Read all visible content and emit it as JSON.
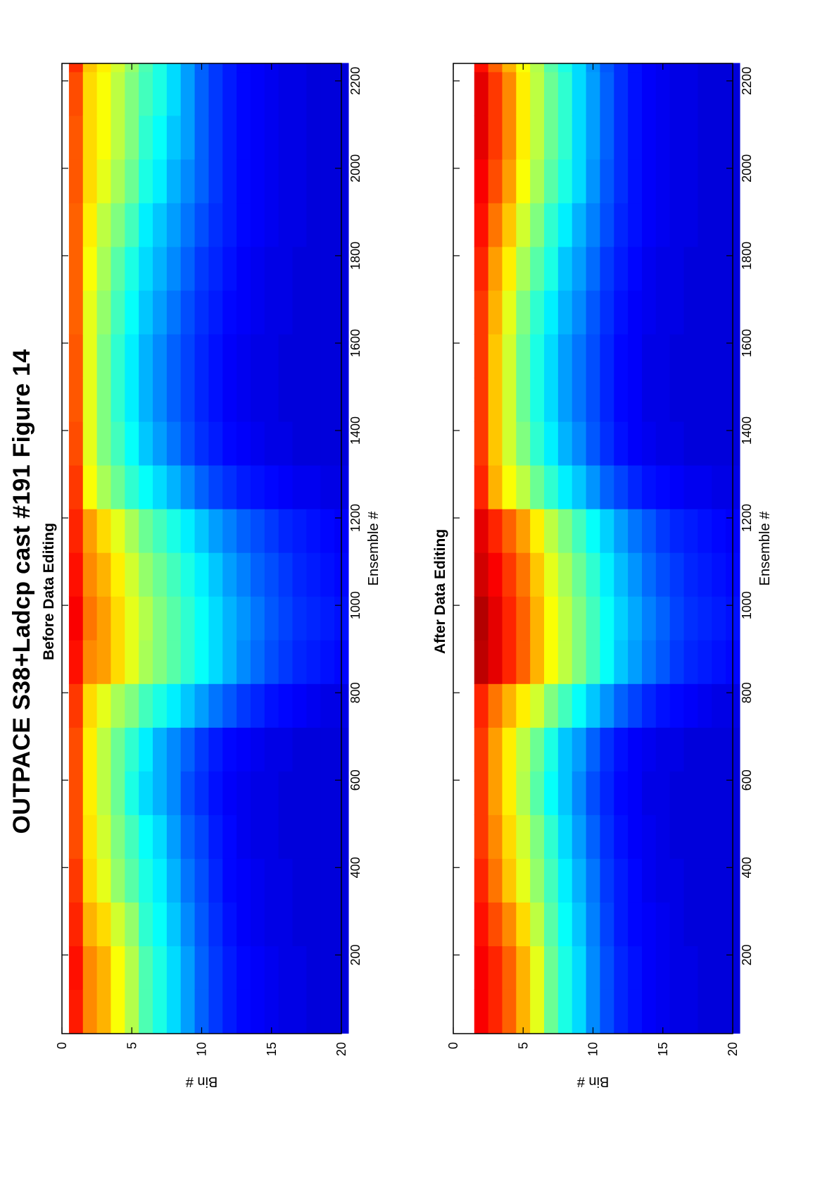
{
  "figure": {
    "title": "OUTPACE S38+Ladcp cast #191  Figure 14"
  },
  "chart_data": [
    {
      "type": "heatmap",
      "title": "Before Data Editing",
      "xlabel": "Ensemble #",
      "ylabel": "Bin #",
      "xlim": [
        20,
        2240
      ],
      "ylim": [
        0,
        20
      ],
      "y_reversed": true,
      "xticks": [
        200,
        400,
        600,
        800,
        1000,
        1200,
        1400,
        1600,
        1800,
        2000,
        2200
      ],
      "yticks": [
        0,
        5,
        10,
        15,
        20
      ],
      "bins": [
        1,
        2,
        3,
        4,
        5,
        6,
        7,
        8,
        9,
        10,
        11,
        12,
        13,
        14,
        15,
        16,
        17,
        18,
        19,
        20
      ],
      "ensembles": [
        20,
        120,
        220,
        320,
        420,
        520,
        620,
        720,
        820,
        920,
        1020,
        1120,
        1220,
        1320,
        1420,
        1520,
        1620,
        1720,
        1820,
        1920,
        2020,
        2120,
        2220
      ],
      "values": [
        [
          0.85,
          0.86,
          0.84,
          0.82,
          0.8,
          0.8,
          0.8,
          0.82,
          0.86,
          0.88,
          0.86,
          0.84,
          0.82,
          0.8,
          0.79,
          0.79,
          0.78,
          0.78,
          0.78,
          0.79,
          0.79,
          0.8,
          0.83
        ],
        [
          0.74,
          0.74,
          0.7,
          0.66,
          0.65,
          0.64,
          0.64,
          0.66,
          0.74,
          0.76,
          0.74,
          0.72,
          0.62,
          0.6,
          0.6,
          0.6,
          0.6,
          0.62,
          0.64,
          0.66,
          0.66,
          0.66,
          0.68
        ],
        [
          0.7,
          0.7,
          0.66,
          0.6,
          0.58,
          0.56,
          0.56,
          0.6,
          0.72,
          0.72,
          0.7,
          0.66,
          0.54,
          0.5,
          0.5,
          0.5,
          0.52,
          0.54,
          0.56,
          0.6,
          0.62,
          0.62,
          0.64
        ],
        [
          0.62,
          0.62,
          0.58,
          0.52,
          0.5,
          0.48,
          0.48,
          0.54,
          0.66,
          0.66,
          0.64,
          0.6,
          0.48,
          0.44,
          0.42,
          0.42,
          0.44,
          0.46,
          0.5,
          0.54,
          0.56,
          0.56,
          0.58
        ],
        [
          0.55,
          0.55,
          0.52,
          0.46,
          0.44,
          0.4,
          0.42,
          0.5,
          0.6,
          0.6,
          0.58,
          0.54,
          0.42,
          0.38,
          0.36,
          0.36,
          0.38,
          0.4,
          0.44,
          0.48,
          0.5,
          0.5,
          0.52
        ],
        [
          0.45,
          0.45,
          0.42,
          0.4,
          0.38,
          0.34,
          0.36,
          0.44,
          0.54,
          0.55,
          0.52,
          0.48,
          0.38,
          0.32,
          0.3,
          0.3,
          0.32,
          0.34,
          0.36,
          0.4,
          0.42,
          0.44,
          0.45
        ],
        [
          0.4,
          0.4,
          0.38,
          0.36,
          0.34,
          0.3,
          0.3,
          0.4,
          0.5,
          0.5,
          0.48,
          0.44,
          0.34,
          0.28,
          0.26,
          0.26,
          0.28,
          0.3,
          0.32,
          0.36,
          0.38,
          0.4,
          0.4
        ],
        [
          0.34,
          0.34,
          0.32,
          0.3,
          0.28,
          0.26,
          0.26,
          0.36,
          0.46,
          0.46,
          0.44,
          0.4,
          0.3,
          0.24,
          0.22,
          0.22,
          0.24,
          0.26,
          0.28,
          0.3,
          0.32,
          0.34,
          0.34
        ],
        [
          0.28,
          0.28,
          0.26,
          0.24,
          0.22,
          0.2,
          0.22,
          0.32,
          0.42,
          0.42,
          0.4,
          0.36,
          0.26,
          0.2,
          0.19,
          0.19,
          0.2,
          0.22,
          0.24,
          0.26,
          0.28,
          0.28,
          0.28
        ],
        [
          0.22,
          0.22,
          0.21,
          0.2,
          0.19,
          0.17,
          0.18,
          0.28,
          0.38,
          0.38,
          0.36,
          0.32,
          0.22,
          0.17,
          0.16,
          0.16,
          0.17,
          0.18,
          0.2,
          0.22,
          0.22,
          0.22,
          0.22
        ],
        [
          0.18,
          0.18,
          0.17,
          0.16,
          0.15,
          0.14,
          0.15,
          0.24,
          0.34,
          0.34,
          0.32,
          0.28,
          0.19,
          0.15,
          0.14,
          0.14,
          0.15,
          0.16,
          0.17,
          0.18,
          0.18,
          0.18,
          0.18
        ],
        [
          0.15,
          0.15,
          0.14,
          0.13,
          0.13,
          0.12,
          0.13,
          0.21,
          0.3,
          0.3,
          0.28,
          0.25,
          0.17,
          0.13,
          0.12,
          0.12,
          0.13,
          0.14,
          0.15,
          0.15,
          0.15,
          0.15,
          0.15
        ],
        [
          0.13,
          0.13,
          0.12,
          0.12,
          0.11,
          0.11,
          0.12,
          0.18,
          0.26,
          0.27,
          0.25,
          0.22,
          0.15,
          0.12,
          0.11,
          0.11,
          0.12,
          0.12,
          0.13,
          0.13,
          0.13,
          0.13,
          0.13
        ],
        [
          0.12,
          0.12,
          0.11,
          0.11,
          0.1,
          0.1,
          0.11,
          0.16,
          0.23,
          0.24,
          0.22,
          0.2,
          0.14,
          0.11,
          0.1,
          0.1,
          0.11,
          0.11,
          0.12,
          0.12,
          0.12,
          0.12,
          0.12
        ],
        [
          0.11,
          0.11,
          0.1,
          0.1,
          0.1,
          0.1,
          0.1,
          0.14,
          0.2,
          0.21,
          0.2,
          0.18,
          0.13,
          0.1,
          0.1,
          0.1,
          0.1,
          0.1,
          0.11,
          0.11,
          0.11,
          0.11,
          0.11
        ],
        [
          0.1,
          0.1,
          0.1,
          0.1,
          0.09,
          0.09,
          0.1,
          0.13,
          0.18,
          0.19,
          0.18,
          0.16,
          0.12,
          0.1,
          0.09,
          0.09,
          0.1,
          0.1,
          0.1,
          0.1,
          0.1,
          0.1,
          0.1
        ],
        [
          0.1,
          0.1,
          0.09,
          0.09,
          0.09,
          0.09,
          0.09,
          0.12,
          0.16,
          0.17,
          0.16,
          0.15,
          0.11,
          0.09,
          0.09,
          0.09,
          0.09,
          0.09,
          0.1,
          0.1,
          0.1,
          0.1,
          0.1
        ],
        [
          0.09,
          0.09,
          0.09,
          0.09,
          0.09,
          0.09,
          0.09,
          0.11,
          0.15,
          0.16,
          0.15,
          0.14,
          0.11,
          0.09,
          0.09,
          0.09,
          0.09,
          0.09,
          0.09,
          0.09,
          0.09,
          0.09,
          0.09
        ],
        [
          0.09,
          0.09,
          0.09,
          0.09,
          0.09,
          0.09,
          0.09,
          0.1,
          0.14,
          0.15,
          0.14,
          0.13,
          0.1,
          0.09,
          0.09,
          0.09,
          0.09,
          0.09,
          0.09,
          0.09,
          0.09,
          0.09,
          0.09
        ],
        [
          0.09,
          0.09,
          0.09,
          0.09,
          0.09,
          0.09,
          0.09,
          0.1,
          0.13,
          0.14,
          0.13,
          0.12,
          0.1,
          0.09,
          0.09,
          0.09,
          0.09,
          0.09,
          0.09,
          0.09,
          0.09,
          0.09,
          0.09
        ]
      ],
      "colormap": "jet"
    },
    {
      "type": "heatmap",
      "title": "After Data Editing",
      "xlabel": "Ensemble #",
      "ylabel": "Bin #",
      "xlim": [
        20,
        2240
      ],
      "ylim": [
        0,
        20
      ],
      "y_reversed": true,
      "xticks": [
        200,
        400,
        600,
        800,
        1000,
        1200,
        1400,
        1600,
        1800,
        2000,
        2200
      ],
      "yticks": [
        0,
        5,
        10,
        15,
        20
      ],
      "bins": [
        1,
        2,
        3,
        4,
        5,
        6,
        7,
        8,
        9,
        10,
        11,
        12,
        13,
        14,
        15,
        16,
        17,
        18,
        19,
        20
      ],
      "ensembles": [
        20,
        120,
        220,
        320,
        420,
        520,
        620,
        720,
        820,
        920,
        1020,
        1120,
        1220,
        1320,
        1420,
        1520,
        1620,
        1720,
        1820,
        1920,
        2020,
        2120,
        2220
      ],
      "values": [
        [
          null,
          null,
          null,
          null,
          null,
          null,
          null,
          null,
          null,
          null,
          null,
          null,
          null,
          null,
          null,
          null,
          null,
          null,
          null,
          null,
          null,
          null,
          null
        ],
        [
          0.88,
          0.88,
          0.86,
          0.84,
          0.82,
          0.82,
          0.82,
          0.84,
          0.94,
          0.95,
          0.92,
          0.9,
          0.84,
          0.82,
          0.82,
          0.82,
          0.82,
          0.84,
          0.86,
          0.88,
          0.9,
          0.9,
          0.86
        ],
        [
          0.84,
          0.84,
          0.8,
          0.76,
          0.74,
          0.72,
          0.72,
          0.76,
          0.9,
          0.9,
          0.88,
          0.84,
          0.7,
          0.68,
          0.68,
          0.68,
          0.7,
          0.72,
          0.76,
          0.8,
          0.82,
          0.82,
          0.78
        ],
        [
          0.78,
          0.78,
          0.74,
          0.68,
          0.66,
          0.64,
          0.64,
          0.7,
          0.84,
          0.84,
          0.82,
          0.78,
          0.62,
          0.58,
          0.58,
          0.58,
          0.6,
          0.64,
          0.68,
          0.72,
          0.74,
          0.74,
          0.7
        ],
        [
          0.7,
          0.7,
          0.66,
          0.6,
          0.58,
          0.55,
          0.56,
          0.64,
          0.78,
          0.78,
          0.76,
          0.72,
          0.56,
          0.5,
          0.48,
          0.48,
          0.5,
          0.54,
          0.58,
          0.62,
          0.64,
          0.64,
          0.62
        ],
        [
          0.6,
          0.6,
          0.56,
          0.52,
          0.5,
          0.46,
          0.48,
          0.58,
          0.7,
          0.7,
          0.68,
          0.64,
          0.48,
          0.42,
          0.4,
          0.4,
          0.42,
          0.46,
          0.5,
          0.54,
          0.56,
          0.56,
          0.55
        ],
        [
          0.48,
          0.48,
          0.46,
          0.44,
          0.42,
          0.38,
          0.4,
          0.5,
          0.62,
          0.62,
          0.6,
          0.56,
          0.42,
          0.36,
          0.34,
          0.34,
          0.36,
          0.4,
          0.42,
          0.46,
          0.48,
          0.48,
          0.46
        ],
        [
          0.4,
          0.4,
          0.38,
          0.36,
          0.34,
          0.32,
          0.32,
          0.44,
          0.56,
          0.56,
          0.54,
          0.5,
          0.36,
          0.3,
          0.28,
          0.28,
          0.3,
          0.32,
          0.36,
          0.4,
          0.42,
          0.42,
          0.4
        ],
        [
          0.34,
          0.34,
          0.32,
          0.3,
          0.28,
          0.26,
          0.28,
          0.38,
          0.5,
          0.5,
          0.48,
          0.44,
          0.32,
          0.26,
          0.24,
          0.24,
          0.26,
          0.28,
          0.3,
          0.34,
          0.34,
          0.34,
          0.34
        ],
        [
          0.26,
          0.26,
          0.25,
          0.24,
          0.22,
          0.2,
          0.22,
          0.32,
          0.44,
          0.44,
          0.42,
          0.38,
          0.27,
          0.21,
          0.2,
          0.2,
          0.21,
          0.23,
          0.25,
          0.27,
          0.28,
          0.28,
          0.27
        ],
        [
          0.2,
          0.2,
          0.19,
          0.18,
          0.17,
          0.16,
          0.17,
          0.27,
          0.38,
          0.38,
          0.36,
          0.33,
          0.22,
          0.17,
          0.16,
          0.16,
          0.17,
          0.18,
          0.2,
          0.21,
          0.22,
          0.22,
          0.21
        ],
        [
          0.16,
          0.16,
          0.15,
          0.15,
          0.14,
          0.13,
          0.14,
          0.22,
          0.32,
          0.33,
          0.31,
          0.28,
          0.19,
          0.14,
          0.13,
          0.13,
          0.14,
          0.15,
          0.16,
          0.17,
          0.17,
          0.17,
          0.17
        ],
        [
          0.14,
          0.14,
          0.13,
          0.13,
          0.12,
          0.12,
          0.12,
          0.19,
          0.28,
          0.29,
          0.27,
          0.24,
          0.16,
          0.12,
          0.12,
          0.12,
          0.12,
          0.13,
          0.14,
          0.14,
          0.14,
          0.14,
          0.14
        ],
        [
          0.12,
          0.12,
          0.12,
          0.11,
          0.11,
          0.1,
          0.11,
          0.16,
          0.24,
          0.25,
          0.23,
          0.21,
          0.14,
          0.11,
          0.1,
          0.1,
          0.11,
          0.11,
          0.12,
          0.12,
          0.12,
          0.12,
          0.12
        ],
        [
          0.11,
          0.11,
          0.11,
          0.1,
          0.1,
          0.1,
          0.1,
          0.14,
          0.21,
          0.22,
          0.2,
          0.18,
          0.13,
          0.1,
          0.1,
          0.1,
          0.1,
          0.1,
          0.11,
          0.11,
          0.11,
          0.11,
          0.11
        ],
        [
          0.1,
          0.1,
          0.1,
          0.1,
          0.09,
          0.09,
          0.1,
          0.13,
          0.18,
          0.19,
          0.18,
          0.16,
          0.12,
          0.1,
          0.09,
          0.09,
          0.1,
          0.1,
          0.1,
          0.1,
          0.1,
          0.1,
          0.1
        ],
        [
          0.1,
          0.1,
          0.09,
          0.09,
          0.09,
          0.09,
          0.09,
          0.12,
          0.16,
          0.17,
          0.16,
          0.15,
          0.11,
          0.09,
          0.09,
          0.09,
          0.09,
          0.09,
          0.1,
          0.1,
          0.1,
          0.1,
          0.1
        ],
        [
          0.09,
          0.09,
          0.09,
          0.09,
          0.09,
          0.09,
          0.09,
          0.11,
          0.15,
          0.16,
          0.15,
          0.14,
          0.11,
          0.09,
          0.09,
          0.09,
          0.09,
          0.09,
          0.09,
          0.09,
          0.09,
          0.09,
          0.09
        ],
        [
          0.09,
          0.09,
          0.09,
          0.09,
          0.09,
          0.09,
          0.09,
          0.1,
          0.14,
          0.15,
          0.14,
          0.13,
          0.1,
          0.09,
          0.09,
          0.09,
          0.09,
          0.09,
          0.09,
          0.09,
          0.09,
          0.09,
          0.09
        ],
        [
          0.09,
          0.09,
          0.09,
          0.09,
          0.09,
          0.09,
          0.09,
          0.1,
          0.13,
          0.14,
          0.13,
          0.12,
          0.1,
          0.09,
          0.09,
          0.09,
          0.09,
          0.09,
          0.09,
          0.09,
          0.09,
          0.09,
          0.09
        ]
      ],
      "colormap": "jet"
    }
  ]
}
